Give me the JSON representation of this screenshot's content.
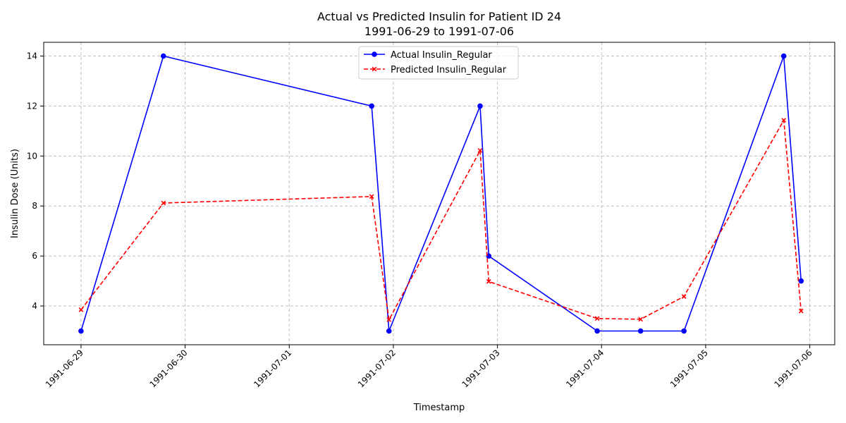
{
  "chart_data": {
    "type": "line",
    "title": "Actual vs Predicted Insulin for Patient ID 24",
    "subtitle": "1991-06-29 to 1991-07-06",
    "xlabel": "Timestamp",
    "ylabel": "Insulin Dose (Units)",
    "xlim": [
      "1991-06-28T15:24",
      "1991-07-06T05:45"
    ],
    "ylim": [
      2.45,
      14.55
    ],
    "x_ticks": [
      "1991-06-29",
      "1991-06-30",
      "1991-07-01",
      "1991-07-02",
      "1991-07-03",
      "1991-07-04",
      "1991-07-05",
      "1991-07-06"
    ],
    "y_ticks": [
      4,
      6,
      8,
      10,
      12,
      14
    ],
    "grid": true,
    "legend_position": "top-center",
    "x": [
      "1991-06-29T00:00",
      "1991-06-29T19:00",
      "1991-07-01T19:00",
      "1991-07-01T23:00",
      "1991-07-02T20:00",
      "1991-07-02T22:00",
      "1991-07-03T23:00",
      "1991-07-04T09:00",
      "1991-07-04T19:00",
      "1991-07-05T18:00",
      "1991-07-05T22:00"
    ],
    "series": [
      {
        "name": "Actual Insulin_Regular",
        "color": "#0000ff",
        "marker": "circle",
        "line_style": "solid",
        "values": [
          3,
          14,
          12,
          3,
          12,
          6,
          3,
          3,
          3,
          14,
          5
        ]
      },
      {
        "name": "Predicted Insulin_Regular",
        "color": "#ff0000",
        "marker": "x",
        "line_style": "dashed",
        "values": [
          3.85,
          8.12,
          8.38,
          3.45,
          10.22,
          4.98,
          3.5,
          3.47,
          4.38,
          11.43,
          3.8
        ]
      }
    ]
  }
}
